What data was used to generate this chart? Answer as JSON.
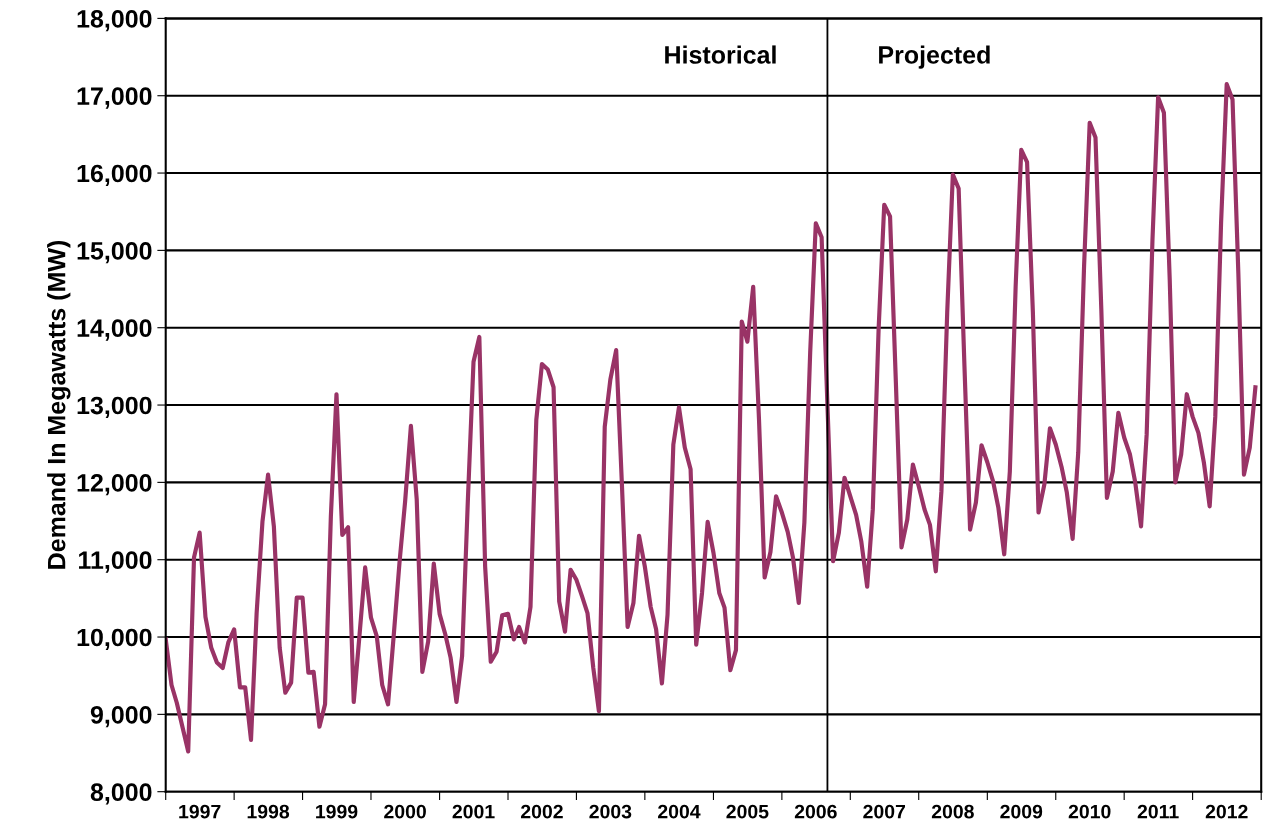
{
  "chart_data": {
    "type": "line",
    "ylabel": "Demand In Megawatts (MW)",
    "x": [
      "1997-01",
      "1997-02",
      "1997-03",
      "1997-04",
      "1997-05",
      "1997-06",
      "1997-07",
      "1997-08",
      "1997-09",
      "1997-10",
      "1997-11",
      "1997-12",
      "1998-01",
      "1998-02",
      "1998-03",
      "1998-04",
      "1998-05",
      "1998-06",
      "1998-07",
      "1998-08",
      "1998-09",
      "1998-10",
      "1998-11",
      "1998-12",
      "1999-01",
      "1999-02",
      "1999-03",
      "1999-04",
      "1999-05",
      "1999-06",
      "1999-07",
      "1999-08",
      "1999-09",
      "1999-10",
      "1999-11",
      "1999-12",
      "2000-01",
      "2000-02",
      "2000-03",
      "2000-04",
      "2000-05",
      "2000-06",
      "2000-07",
      "2000-08",
      "2000-09",
      "2000-10",
      "2000-11",
      "2000-12",
      "2001-01",
      "2001-02",
      "2001-03",
      "2001-04",
      "2001-05",
      "2001-06",
      "2001-07",
      "2001-08",
      "2001-09",
      "2001-10",
      "2001-11",
      "2001-12",
      "2002-01",
      "2002-02",
      "2002-03",
      "2002-04",
      "2002-05",
      "2002-06",
      "2002-07",
      "2002-08",
      "2002-09",
      "2002-10",
      "2002-11",
      "2002-12",
      "2003-01",
      "2003-02",
      "2003-03",
      "2003-04",
      "2003-05",
      "2003-06",
      "2003-07",
      "2003-08",
      "2003-09",
      "2003-10",
      "2003-11",
      "2003-12",
      "2004-01",
      "2004-02",
      "2004-03",
      "2004-04",
      "2004-05",
      "2004-06",
      "2004-07",
      "2004-08",
      "2004-09",
      "2004-10",
      "2004-11",
      "2004-12",
      "2005-01",
      "2005-02",
      "2005-03",
      "2005-04",
      "2005-05",
      "2005-06",
      "2005-07",
      "2005-08",
      "2005-09",
      "2005-10",
      "2005-11",
      "2005-12",
      "2006-01",
      "2006-02",
      "2006-03",
      "2006-04",
      "2006-05",
      "2006-06",
      "2006-07",
      "2006-08",
      "2006-09",
      "2006-10",
      "2006-11",
      "2006-12",
      "2007-01",
      "2007-02",
      "2007-03",
      "2007-04",
      "2007-05",
      "2007-06",
      "2007-07",
      "2007-08",
      "2007-09",
      "2007-10",
      "2007-11",
      "2007-12",
      "2008-01",
      "2008-02",
      "2008-03",
      "2008-04",
      "2008-05",
      "2008-06",
      "2008-07",
      "2008-08",
      "2008-09",
      "2008-10",
      "2008-11",
      "2008-12",
      "2009-01",
      "2009-02",
      "2009-03",
      "2009-04",
      "2009-05",
      "2009-06",
      "2009-07",
      "2009-08",
      "2009-09",
      "2009-10",
      "2009-11",
      "2009-12",
      "2010-01",
      "2010-02",
      "2010-03",
      "2010-04",
      "2010-05",
      "2010-06",
      "2010-07",
      "2010-08",
      "2010-09",
      "2010-10",
      "2010-11",
      "2010-12",
      "2011-01",
      "2011-02",
      "2011-03",
      "2011-04",
      "2011-05",
      "2011-06",
      "2011-07",
      "2011-08",
      "2011-09",
      "2011-10",
      "2011-11",
      "2011-12",
      "2012-01",
      "2012-02",
      "2012-03",
      "2012-04",
      "2012-05",
      "2012-06",
      "2012-07",
      "2012-08",
      "2012-09",
      "2012-10",
      "2012-11",
      "2012-12"
    ],
    "series": [
      {
        "color": "#993366",
        "values": [
          9970,
          9380,
          9150,
          8830,
          8520,
          11030,
          11350,
          10260,
          9860,
          9670,
          9600,
          9930,
          10100,
          9350,
          9350,
          8670,
          10310,
          11490,
          12100,
          11430,
          9860,
          9280,
          9410,
          10510,
          10510,
          9540,
          9550,
          8840,
          9130,
          11560,
          13140,
          11320,
          11420,
          9160,
          10030,
          10900,
          10250,
          10010,
          9380,
          9130,
          10010,
          10960,
          11750,
          12730,
          11780,
          9550,
          9940,
          10950,
          10300,
          10030,
          9730,
          9160,
          9750,
          11780,
          13560,
          13880,
          10910,
          9680,
          9810,
          10280,
          10300,
          9970,
          10130,
          9930,
          10390,
          12810,
          13530,
          13460,
          13230,
          10460,
          10070,
          10870,
          10740,
          10520,
          10310,
          9600,
          9040,
          12720,
          13330,
          13710,
          11950,
          10130,
          10440,
          11310,
          10910,
          10390,
          10100,
          9400,
          10290,
          12490,
          12970,
          12450,
          12170,
          9900,
          10570,
          11490,
          11090,
          10570,
          10380,
          9570,
          9830,
          14080,
          13820,
          14530,
          12810,
          10770,
          11100,
          11820,
          11610,
          11360,
          11030,
          10440,
          11480,
          13680,
          15350,
          15170,
          13000,
          10980,
          11350,
          12060,
          11820,
          11580,
          11230,
          10650,
          11650,
          13980,
          15590,
          15440,
          13300,
          11160,
          11520,
          12230,
          11950,
          11650,
          11450,
          10850,
          11880,
          14200,
          15980,
          15800,
          13500,
          11390,
          11740,
          12480,
          12260,
          12010,
          11670,
          11070,
          12140,
          14530,
          16300,
          16140,
          14200,
          11610,
          11970,
          12700,
          12490,
          12200,
          11870,
          11270,
          12390,
          14790,
          16650,
          16460,
          14240,
          11800,
          12140,
          12900,
          12580,
          12360,
          12000,
          11430,
          12620,
          15140,
          16980,
          16780,
          14620,
          12000,
          12360,
          13140,
          12850,
          12640,
          12260,
          11690,
          12850,
          15360,
          17150,
          16950,
          14710,
          12100,
          12450,
          13230
        ]
      }
    ],
    "xlim": [
      "1997-01",
      "2013-01"
    ],
    "xticks": [
      {
        "value": "1997-01",
        "label": null
      },
      {
        "value": "1997-07",
        "label": "1997"
      },
      {
        "value": "1998-01",
        "label": null
      },
      {
        "value": "1998-07",
        "label": "1998"
      },
      {
        "value": "1999-01",
        "label": null
      },
      {
        "value": "1999-07",
        "label": "1999"
      },
      {
        "value": "2000-01",
        "label": null
      },
      {
        "value": "2000-07",
        "label": "2000"
      },
      {
        "value": "2001-01",
        "label": null
      },
      {
        "value": "2001-07",
        "label": "2001"
      },
      {
        "value": "2002-01",
        "label": null
      },
      {
        "value": "2002-07",
        "label": "2002"
      },
      {
        "value": "2003-01",
        "label": null
      },
      {
        "value": "2003-07",
        "label": "2003"
      },
      {
        "value": "2004-01",
        "label": null
      },
      {
        "value": "2004-07",
        "label": "2004"
      },
      {
        "value": "2005-01",
        "label": null
      },
      {
        "value": "2005-07",
        "label": "2005"
      },
      {
        "value": "2006-01",
        "label": null
      },
      {
        "value": "2006-07",
        "label": "2006"
      },
      {
        "value": "2007-01",
        "label": null
      },
      {
        "value": "2007-07",
        "label": "2007"
      },
      {
        "value": "2008-01",
        "label": null
      },
      {
        "value": "2008-07",
        "label": "2008"
      },
      {
        "value": "2009-01",
        "label": null
      },
      {
        "value": "2009-07",
        "label": "2009"
      },
      {
        "value": "2010-01",
        "label": null
      },
      {
        "value": "2010-07",
        "label": "2010"
      },
      {
        "value": "2011-01",
        "label": null
      },
      {
        "value": "2011-07",
        "label": "2011"
      },
      {
        "value": "2012-01",
        "label": null
      },
      {
        "value": "2012-07",
        "label": "2012"
      },
      {
        "value": "2013-01",
        "label": null
      }
    ],
    "ylim": [
      8000,
      18000
    ],
    "yticks": [
      {
        "value": 8000,
        "label": "8,000"
      },
      {
        "value": 9000,
        "label": "9,000"
      },
      {
        "value": 10000,
        "label": "10,000"
      },
      {
        "value": 11000,
        "label": "11,000"
      },
      {
        "value": 12000,
        "label": "12,000"
      },
      {
        "value": 13000,
        "label": "13,000"
      },
      {
        "value": 14000,
        "label": "14,000"
      },
      {
        "value": 15000,
        "label": "15,000"
      },
      {
        "value": 16000,
        "label": "16,000"
      },
      {
        "value": 17000,
        "label": "17,000"
      },
      {
        "value": 18000,
        "label": "18,000"
      }
    ],
    "grid": "y",
    "marker": "none",
    "line_style": "solid",
    "legend": false,
    "ref_lines": [
      {
        "axis": "x",
        "value": "2006-09",
        "color": "#000000"
      }
    ],
    "annotations": [
      "Historical",
      "Projected"
    ]
  }
}
